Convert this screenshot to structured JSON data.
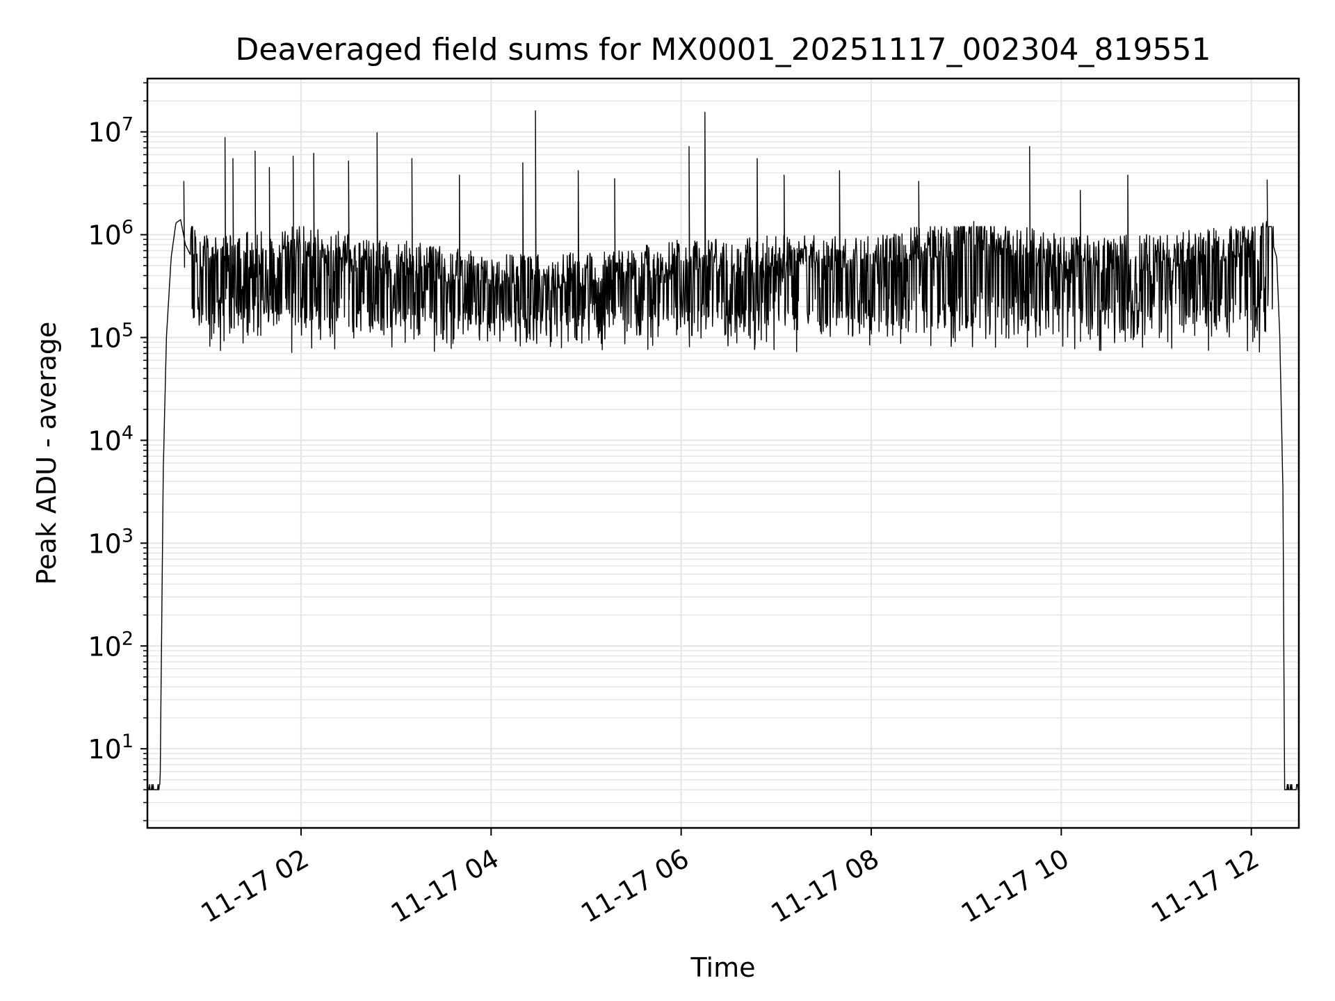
{
  "chart_data": {
    "type": "line",
    "title": "Deaveraged field sums for MX0001_20251117_002304_819551",
    "xlabel": "Time",
    "ylabel": "Peak ADU - average",
    "y_scale": "log",
    "ylim": [
      1.7,
      33000000
    ],
    "xlim": [
      "2025-11-17 00:23",
      "2025-11-17 12:30"
    ],
    "grid": true,
    "x_ticks": [
      {
        "value": "2025-11-17 02:00",
        "label": "11-17 02"
      },
      {
        "value": "2025-11-17 04:00",
        "label": "11-17 04"
      },
      {
        "value": "2025-11-17 06:00",
        "label": "11-17 06"
      },
      {
        "value": "2025-11-17 08:00",
        "label": "11-17 08"
      },
      {
        "value": "2025-11-17 10:00",
        "label": "11-17 10"
      },
      {
        "value": "2025-11-17 12:00",
        "label": "11-17 12"
      }
    ],
    "y_ticks": [
      {
        "value": 10,
        "base": "10",
        "exp": "1"
      },
      {
        "value": 100,
        "base": "10",
        "exp": "2"
      },
      {
        "value": 1000,
        "base": "10",
        "exp": "3"
      },
      {
        "value": 10000,
        "base": "10",
        "exp": "4"
      },
      {
        "value": 100000,
        "base": "10",
        "exp": "5"
      },
      {
        "value": 1000000,
        "base": "10",
        "exp": "6"
      },
      {
        "value": 10000000,
        "base": "10",
        "exp": "7"
      }
    ],
    "series": [
      {
        "color": "#000000",
        "baseline": 4,
        "points": [
          {
            "x": "2025-11-17 00:23",
            "y": 4
          },
          {
            "x": "2025-11-17 00:31",
            "y": 4
          },
          {
            "x": "2025-11-17 00:33",
            "y": 5000
          },
          {
            "x": "2025-11-17 00:35",
            "y": 100000
          },
          {
            "x": "2025-11-17 00:38",
            "y": 600000
          },
          {
            "x": "2025-11-17 00:41",
            "y": 1300000
          },
          {
            "x": "2025-11-17 00:44",
            "y": 1400000
          },
          {
            "x": "2025-11-17 00:47",
            "y": 800000
          },
          {
            "x": "2025-11-17 00:55",
            "y": 450000
          },
          {
            "x": "2025-11-17 01:30",
            "y": 500000
          },
          {
            "x": "2025-11-17 02:00",
            "y": 550000
          },
          {
            "x": "2025-11-17 03:00",
            "y": 400000
          },
          {
            "x": "2025-11-17 04:00",
            "y": 300000
          },
          {
            "x": "2025-11-17 05:00",
            "y": 300000
          },
          {
            "x": "2025-11-17 06:00",
            "y": 400000
          },
          {
            "x": "2025-11-17 07:00",
            "y": 450000
          },
          {
            "x": "2025-11-17 08:00",
            "y": 450000
          },
          {
            "x": "2025-11-17 08:50",
            "y": 600000
          },
          {
            "x": "2025-11-17 09:00",
            "y": 900000
          },
          {
            "x": "2025-11-17 09:10",
            "y": 700000
          },
          {
            "x": "2025-11-17 10:00",
            "y": 450000
          },
          {
            "x": "2025-11-17 11:00",
            "y": 450000
          },
          {
            "x": "2025-11-17 12:00",
            "y": 600000
          },
          {
            "x": "2025-11-17 12:07",
            "y": 1000000
          },
          {
            "x": "2025-11-17 12:12",
            "y": 1000000
          },
          {
            "x": "2025-11-17 12:16",
            "y": 600000
          },
          {
            "x": "2025-11-17 12:18",
            "y": 100000
          },
          {
            "x": "2025-11-17 12:20",
            "y": 3000
          },
          {
            "x": "2025-11-17 12:21",
            "y": 4
          },
          {
            "x": "2025-11-17 12:30",
            "y": 4
          }
        ],
        "spikes": [
          {
            "x": "2025-11-17 00:46",
            "y": 3300000
          },
          {
            "x": "2025-11-17 01:12",
            "y": 8800000
          },
          {
            "x": "2025-11-17 01:17",
            "y": 5500000
          },
          {
            "x": "2025-11-17 01:31",
            "y": 6500000
          },
          {
            "x": "2025-11-17 01:40",
            "y": 4500000
          },
          {
            "x": "2025-11-17 01:55",
            "y": 5800000
          },
          {
            "x": "2025-11-17 02:08",
            "y": 6200000
          },
          {
            "x": "2025-11-17 02:30",
            "y": 5200000
          },
          {
            "x": "2025-11-17 02:48",
            "y": 9800000
          },
          {
            "x": "2025-11-17 03:10",
            "y": 5500000
          },
          {
            "x": "2025-11-17 03:40",
            "y": 3800000
          },
          {
            "x": "2025-11-17 04:20",
            "y": 5000000
          },
          {
            "x": "2025-11-17 04:28",
            "y": 16000000
          },
          {
            "x": "2025-11-17 04:55",
            "y": 4200000
          },
          {
            "x": "2025-11-17 05:18",
            "y": 3500000
          },
          {
            "x": "2025-11-17 06:05",
            "y": 7200000
          },
          {
            "x": "2025-11-17 06:15",
            "y": 15500000
          },
          {
            "x": "2025-11-17 06:48",
            "y": 5500000
          },
          {
            "x": "2025-11-17 07:05",
            "y": 3800000
          },
          {
            "x": "2025-11-17 07:40",
            "y": 4200000
          },
          {
            "x": "2025-11-17 08:30",
            "y": 3300000
          },
          {
            "x": "2025-11-17 09:40",
            "y": 7200000
          },
          {
            "x": "2025-11-17 10:12",
            "y": 2700000
          },
          {
            "x": "2025-11-17 10:42",
            "y": 3800000
          },
          {
            "x": "2025-11-17 12:10",
            "y": 3400000
          }
        ]
      }
    ]
  }
}
